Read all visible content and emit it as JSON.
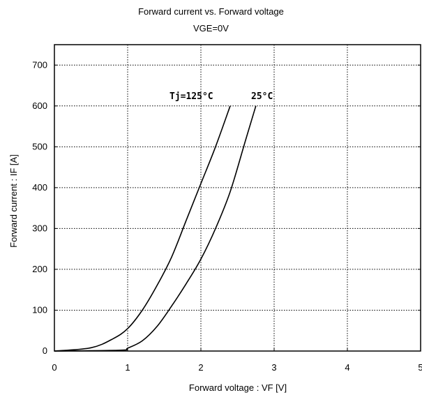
{
  "chart_data": {
    "type": "line",
    "title": "Forward current vs. Forward voltage",
    "subtitle": "VGE=0V",
    "xlabel": "Forward voltage  :  VF [V]",
    "ylabel": "Forward current  :  IF [A]",
    "xlim": [
      0,
      5
    ],
    "ylim": [
      0,
      750
    ],
    "xticks": [
      0,
      1,
      2,
      3,
      4,
      5
    ],
    "yticks": [
      0,
      100,
      200,
      300,
      400,
      500,
      600,
      700
    ],
    "grid": true,
    "series": [
      {
        "name": "Tj=125°C",
        "color": "#000000",
        "x": [
          0.0,
          0.5,
          0.8,
          1.0,
          1.2,
          1.4,
          1.6,
          1.8,
          2.0,
          2.2,
          2.4
        ],
        "y": [
          0,
          8,
          30,
          55,
          100,
          160,
          230,
          320,
          410,
          500,
          600
        ]
      },
      {
        "name": "25°C",
        "color": "#000000",
        "x": [
          0.0,
          0.9,
          1.0,
          1.2,
          1.4,
          1.6,
          1.8,
          2.0,
          2.2,
          2.4,
          2.6,
          2.75
        ],
        "y": [
          0,
          2,
          7,
          25,
          60,
          110,
          165,
          225,
          300,
          390,
          510,
          600
        ]
      }
    ]
  }
}
